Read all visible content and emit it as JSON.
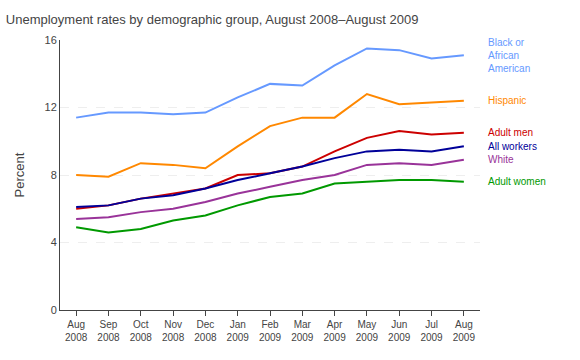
{
  "chart_data": {
    "type": "line",
    "title": "Unemployment rates by demographic group, August 2008–August 2009",
    "ylabel": "Percent",
    "categories": [
      "Aug\n2008",
      "Sep\n2008",
      "Oct\n2008",
      "Nov\n2008",
      "Dec\n2008",
      "Jan\n2009",
      "Feb\n2009",
      "Mar\n2009",
      "Apr\n2009",
      "May\n2009",
      "Jun\n2009",
      "Jul\n2009",
      "Aug\n2009"
    ],
    "series": [
      {
        "name": "Black or\nAfrican\nAmerican",
        "color": "#6699FF",
        "values": [
          11.4,
          11.7,
          11.7,
          11.6,
          11.7,
          12.6,
          13.4,
          13.3,
          14.5,
          15.5,
          15.4,
          14.9,
          15.1
        ]
      },
      {
        "name": "Hispanic",
        "color": "#FF8800",
        "values": [
          8.0,
          7.9,
          8.7,
          8.6,
          8.4,
          9.7,
          10.9,
          11.4,
          11.4,
          12.8,
          12.2,
          12.3,
          12.4
        ]
      },
      {
        "name": "Adult men",
        "color": "#CC0000",
        "values": [
          6.0,
          6.2,
          6.6,
          6.9,
          7.2,
          8.0,
          8.1,
          8.5,
          9.4,
          10.2,
          10.6,
          10.4,
          10.5
        ]
      },
      {
        "name": "All workers",
        "color": "#000099",
        "values": [
          6.1,
          6.2,
          6.6,
          6.8,
          7.2,
          7.7,
          8.1,
          8.5,
          9.0,
          9.4,
          9.5,
          9.4,
          9.7
        ]
      },
      {
        "name": "White",
        "color": "#993399",
        "values": [
          5.4,
          5.5,
          5.8,
          6.0,
          6.4,
          6.9,
          7.3,
          7.7,
          8.0,
          8.6,
          8.7,
          8.6,
          8.9
        ]
      },
      {
        "name": "Adult women",
        "color": "#009900",
        "values": [
          4.9,
          4.6,
          4.8,
          5.3,
          5.6,
          6.2,
          6.7,
          6.9,
          7.5,
          7.6,
          7.7,
          7.7,
          7.6
        ]
      }
    ],
    "ylim": [
      0,
      16
    ],
    "yticks": [
      0,
      4,
      8,
      12,
      16
    ],
    "grid": true
  }
}
